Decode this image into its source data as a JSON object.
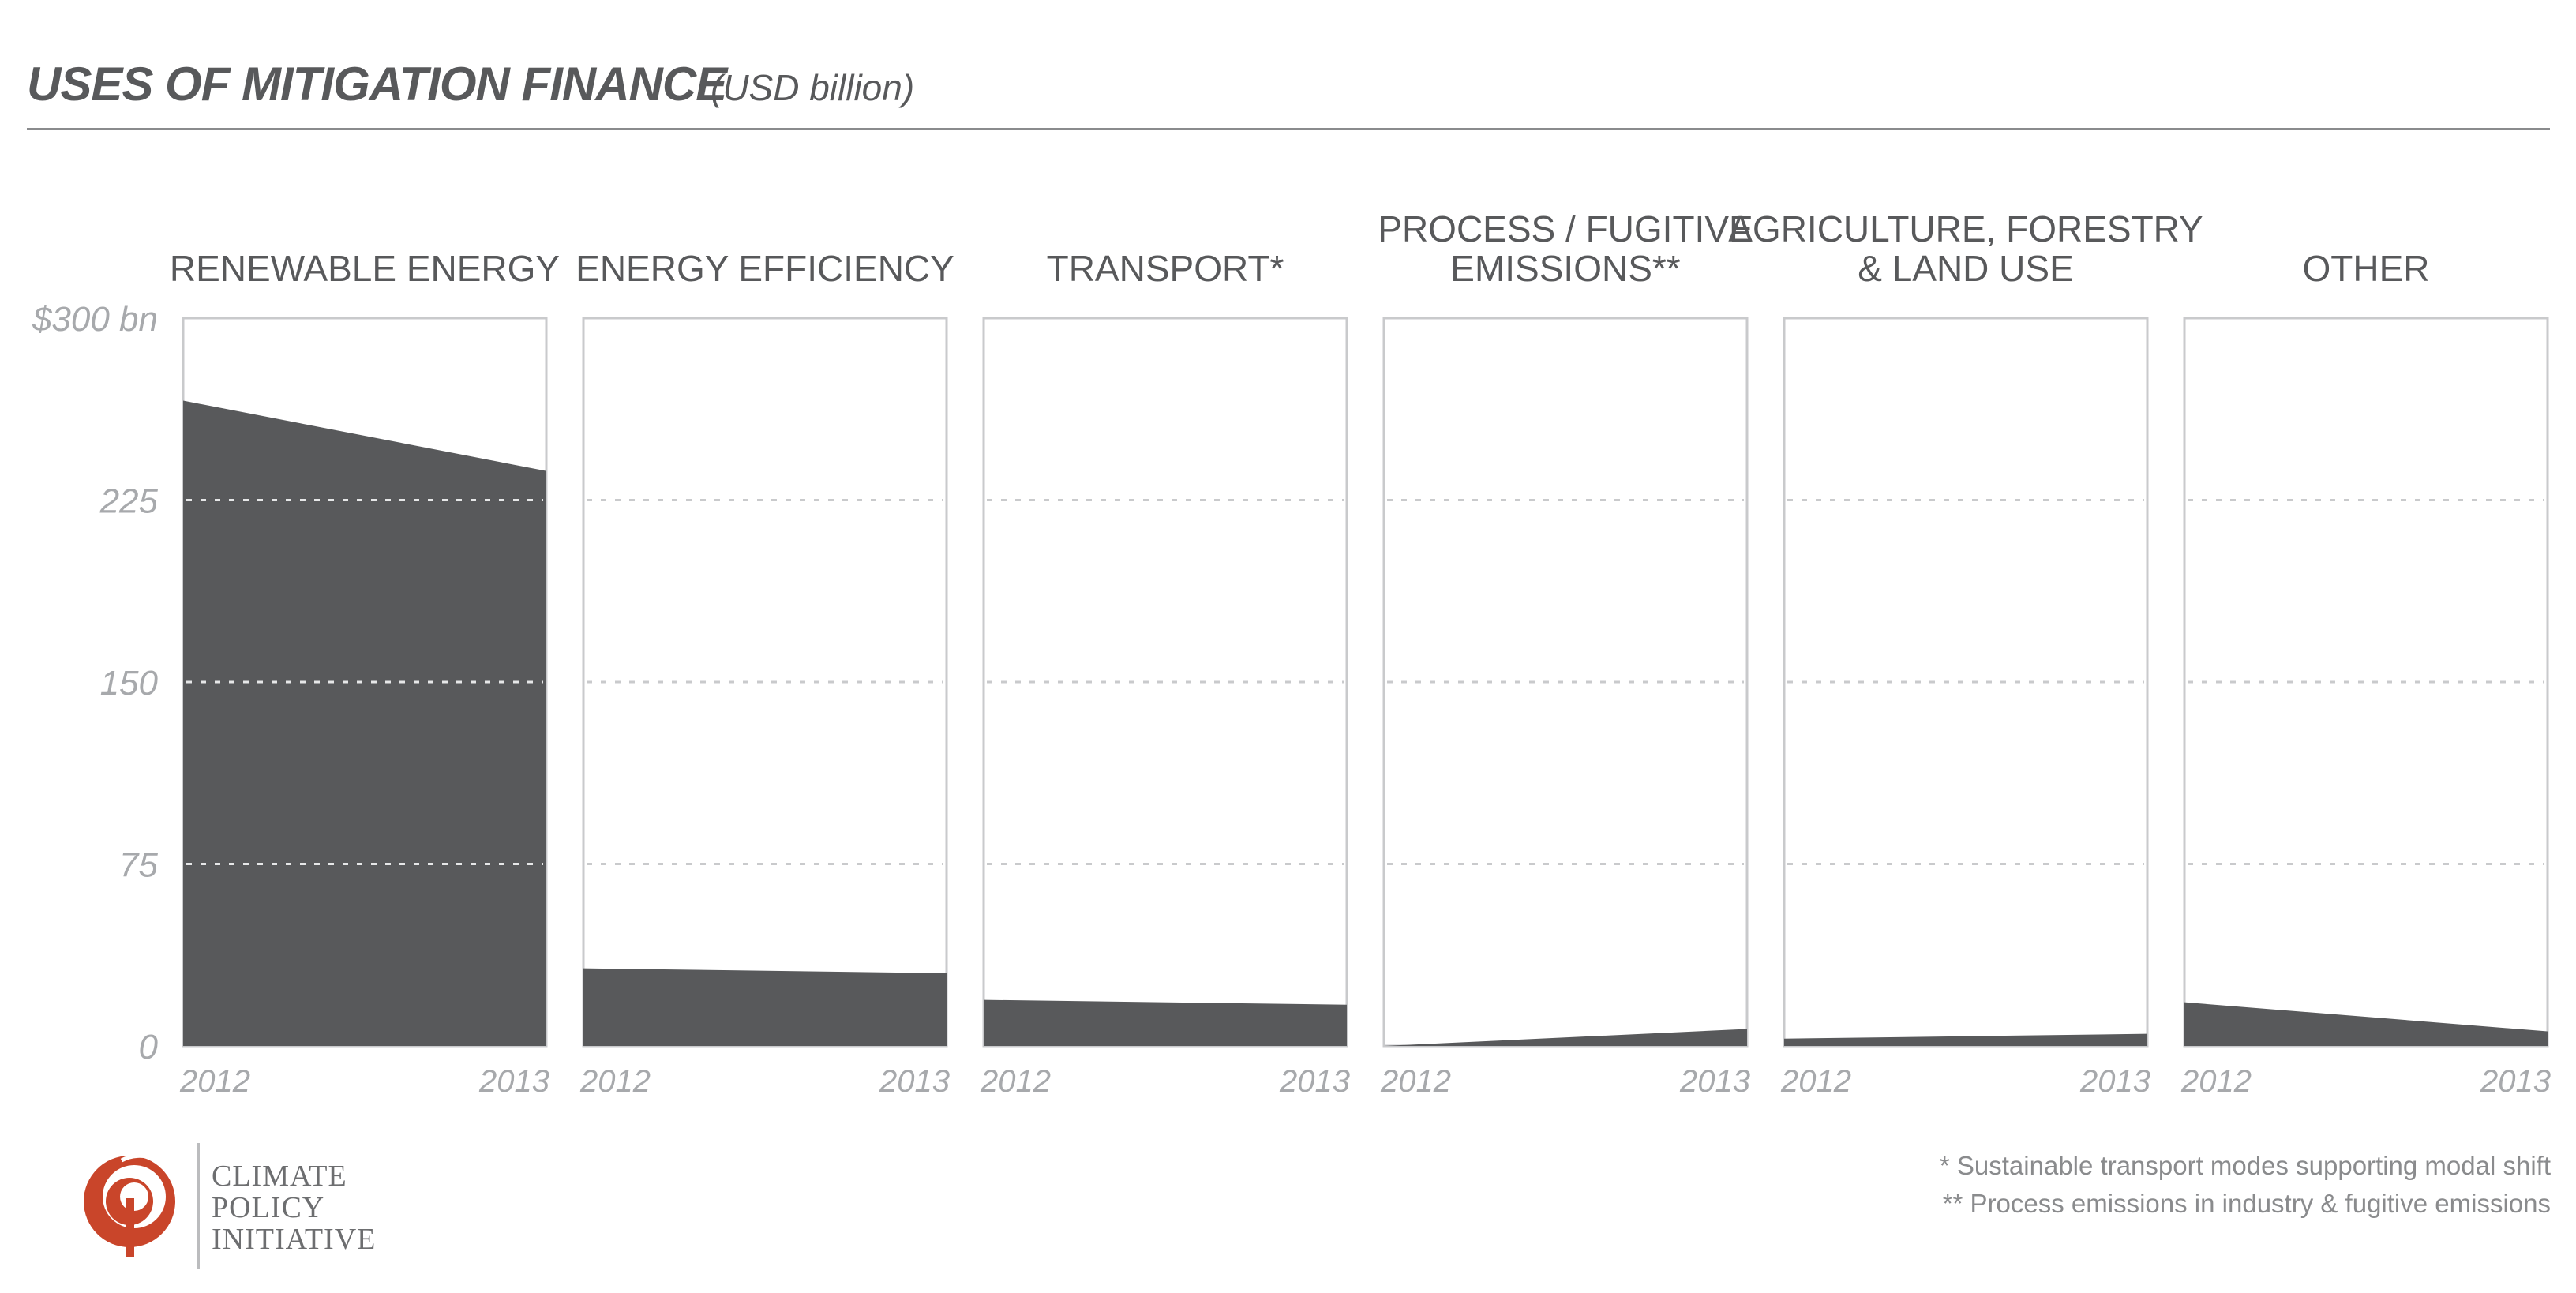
{
  "title": "USES OF MITIGATION FINANCE",
  "subtitle": "(USD billion)",
  "chart_data": {
    "type": "area",
    "title": "USES OF MITIGATION FINANCE",
    "subtitle": "(USD billion)",
    "x": [
      "2012",
      "2013"
    ],
    "ylim": [
      0,
      300
    ],
    "yticks": [
      0,
      75,
      150,
      225,
      300
    ],
    "ytick_labels": [
      "0",
      "75",
      "150",
      "225",
      "$300 bn"
    ],
    "grid": true,
    "panels": [
      {
        "name": "RENEWABLE ENERGY",
        "label_lines": [
          "RENEWABLE ENERGY"
        ],
        "values": [
          266,
          237
        ]
      },
      {
        "name": "ENERGY EFFICIENCY",
        "label_lines": [
          "ENERGY EFFICIENCY"
        ],
        "values": [
          32,
          30
        ]
      },
      {
        "name": "TRANSPORT*",
        "label_lines": [
          "TRANSPORT*"
        ],
        "values": [
          19,
          17
        ]
      },
      {
        "name": "PROCESS / FUGITIVE EMISSIONS**",
        "label_lines": [
          "PROCESS / FUGITIVE",
          "EMISSIONS**"
        ],
        "values": [
          0,
          7
        ]
      },
      {
        "name": "AGRICULTURE, FORESTRY & LAND USE",
        "label_lines": [
          "AGRICULTURE, FORESTRY",
          "& LAND USE"
        ],
        "values": [
          3,
          5
        ]
      },
      {
        "name": "OTHER",
        "label_lines": [
          "OTHER"
        ],
        "values": [
          18,
          6
        ]
      }
    ],
    "colors": {
      "fill": "#58595b",
      "frame": "#c9cacc",
      "grid": "#c9cacc",
      "grid_on_fill": "#e6e7e8"
    }
  },
  "footnotes": [
    "* Sustainable transport modes supporting modal shift",
    "** Process emissions in industry & fugitive emissions"
  ],
  "logo": {
    "name": "climate-policy-initiative-logo",
    "lines": [
      "CLIMATE",
      "POLICY",
      "INITIATIVE"
    ],
    "color": "#c9452a"
  }
}
